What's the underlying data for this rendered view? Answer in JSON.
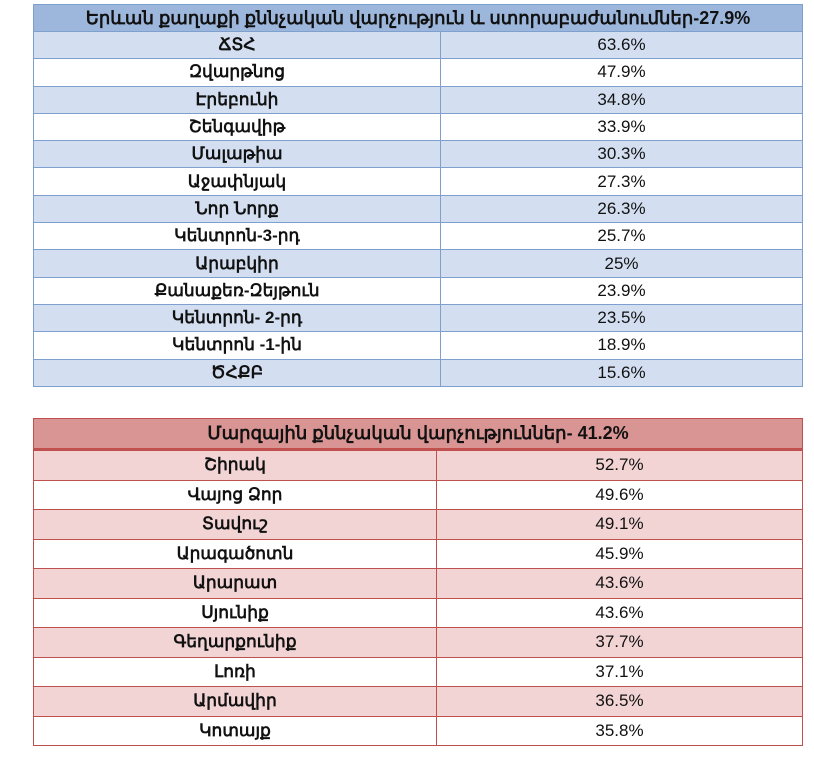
{
  "yerevan": {
    "title": "Երևան քաղաքի քննչական վարչություն և ստորաբաժանումներ-27.9%",
    "rows": [
      [
        "ՃՏՀ",
        "63.6%"
      ],
      [
        "Զվարթնոց",
        "47.9%"
      ],
      [
        "Էրեբունի",
        "34.8%"
      ],
      [
        "Շենգավիթ",
        "33.9%"
      ],
      [
        "Մալաթիա",
        "30.3%"
      ],
      [
        "Աջափնյակ",
        "27.3%"
      ],
      [
        "Նոր Նորք",
        "26.3%"
      ],
      [
        "Կենտրոն-3-րդ",
        "25.7%"
      ],
      [
        "Արաբկիր",
        "25%"
      ],
      [
        "Քանաքեռ-Զեյթուն",
        "23.9%"
      ],
      [
        "Կենտրոն- 2-րդ",
        "23.5%"
      ],
      [
        "Կենտրոն -1-ին",
        "18.9%"
      ],
      [
        "ԾՀՔԲ",
        "15.6%"
      ]
    ]
  },
  "regional": {
    "title": "Մարզային քննչական վարչություններ- 41.2%",
    "rows": [
      [
        "Շիրակ",
        "52.7%"
      ],
      [
        "Վայոց Ձոր",
        "49.6%"
      ],
      [
        "Տավուշ",
        "49.1%"
      ],
      [
        "Արագածոտն",
        "45.9%"
      ],
      [
        "Արարատ",
        "43.6%"
      ],
      [
        "Սյունիք",
        "43.6%"
      ],
      [
        "Գեղարքունիք",
        "37.7%"
      ],
      [
        "Լոռի",
        "37.1%"
      ],
      [
        "Արմավիր",
        "36.5%"
      ],
      [
        "Կոտայք",
        "35.8%"
      ]
    ]
  }
}
